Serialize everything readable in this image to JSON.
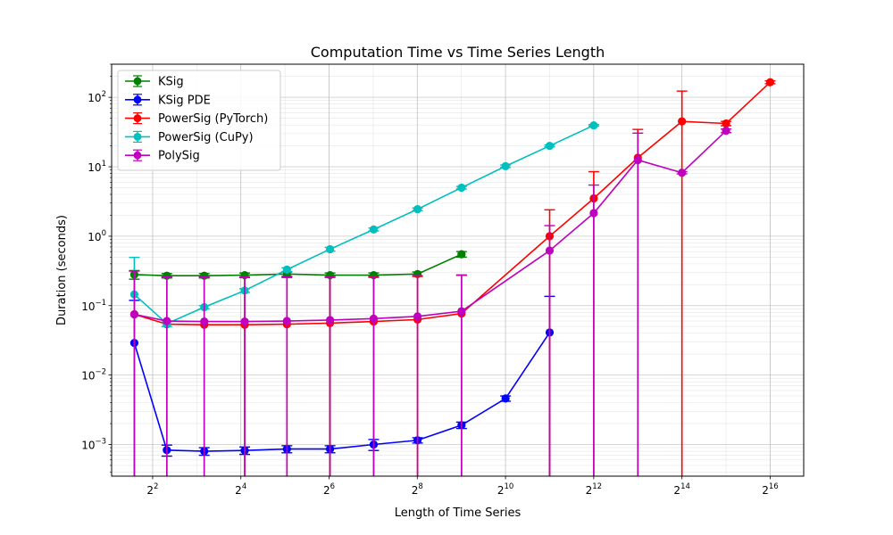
{
  "chart_data": {
    "type": "line",
    "title": "Computation Time vs Time Series Length",
    "xlabel": "Length of Time Series",
    "ylabel": "Duration (seconds)",
    "x_scale": "log2",
    "y_scale": "log10",
    "xlim": [
      2.1,
      111000
    ],
    "ylim": [
      0.00035,
      300
    ],
    "x_ticks": [
      {
        "value": 4,
        "base": "2",
        "exp": "2"
      },
      {
        "value": 16,
        "base": "2",
        "exp": "4"
      },
      {
        "value": 64,
        "base": "2",
        "exp": "6"
      },
      {
        "value": 256,
        "base": "2",
        "exp": "8"
      },
      {
        "value": 1024,
        "base": "2",
        "exp": "10"
      },
      {
        "value": 4096,
        "base": "2",
        "exp": "12"
      },
      {
        "value": 16384,
        "base": "2",
        "exp": "14"
      },
      {
        "value": 65536,
        "base": "2",
        "exp": "16"
      }
    ],
    "y_ticks": [
      {
        "value": 0.001,
        "base": "10",
        "exp": "−3"
      },
      {
        "value": 0.01,
        "base": "10",
        "exp": "−2"
      },
      {
        "value": 0.1,
        "base": "10",
        "exp": "−1"
      },
      {
        "value": 1,
        "base": "10",
        "exp": "0"
      },
      {
        "value": 10,
        "base": "10",
        "exp": "1"
      },
      {
        "value": 100,
        "base": "10",
        "exp": "2"
      }
    ],
    "grid": true,
    "legend_position": "top-left",
    "series": [
      {
        "name": "KSig",
        "color": "#008000",
        "points": [
          {
            "x": 3,
            "y": 0.28,
            "err": 0.04
          },
          {
            "x": 5,
            "y": 0.27,
            "err": 0.02
          },
          {
            "x": 9,
            "y": 0.27,
            "err": 0.02
          },
          {
            "x": 17,
            "y": 0.275,
            "err": 0.02
          },
          {
            "x": 33,
            "y": 0.285,
            "err": 0.02
          },
          {
            "x": 65,
            "y": 0.275,
            "err": 0.02
          },
          {
            "x": 129,
            "y": 0.275,
            "err": 0.02
          },
          {
            "x": 257,
            "y": 0.285,
            "err": 0.02
          },
          {
            "x": 513,
            "y": 0.55,
            "err": 0.05
          }
        ]
      },
      {
        "name": "KSig PDE",
        "color": "#0000ff",
        "points": [
          {
            "x": 3,
            "y": 0.029,
            "err": 0.09
          },
          {
            "x": 5,
            "y": 0.00083,
            "err": 0.00015
          },
          {
            "x": 9,
            "y": 0.0008,
            "err": 0.0001
          },
          {
            "x": 17,
            "y": 0.00082,
            "err": 0.0001
          },
          {
            "x": 33,
            "y": 0.00086,
            "err": 0.0001
          },
          {
            "x": 65,
            "y": 0.00086,
            "err": 0.0001
          },
          {
            "x": 129,
            "y": 0.001,
            "err": 0.00018
          },
          {
            "x": 257,
            "y": 0.00115,
            "err": 0.0001
          },
          {
            "x": 513,
            "y": 0.0019,
            "err": 0.0002
          },
          {
            "x": 1025,
            "y": 0.0046,
            "err": 0.0004
          },
          {
            "x": 2049,
            "y": 0.041,
            "err": 0.095
          }
        ]
      },
      {
        "name": "PowerSig (PyTorch)",
        "color": "#ff0000",
        "points": [
          {
            "x": 3,
            "y": 0.075,
            "err": 0.24
          },
          {
            "x": 5,
            "y": 0.054,
            "err": 0.2
          },
          {
            "x": 9,
            "y": 0.053,
            "err": 0.2
          },
          {
            "x": 17,
            "y": 0.053,
            "err": 0.2
          },
          {
            "x": 33,
            "y": 0.054,
            "err": 0.2
          },
          {
            "x": 65,
            "y": 0.056,
            "err": 0.2
          },
          {
            "x": 129,
            "y": 0.059,
            "err": 0.2
          },
          {
            "x": 257,
            "y": 0.063,
            "err": 0.2
          },
          {
            "x": 513,
            "y": 0.077,
            "err": 0.2
          },
          {
            "x": 2049,
            "y": 1.0,
            "err": 1.4
          },
          {
            "x": 4097,
            "y": 3.5,
            "err": 5.0
          },
          {
            "x": 8193,
            "y": 13.5,
            "err": 21.0
          },
          {
            "x": 16385,
            "y": 45,
            "err": 78
          },
          {
            "x": 32769,
            "y": 42,
            "err": 3
          },
          {
            "x": 65537,
            "y": 165,
            "err": 8
          }
        ]
      },
      {
        "name": "PowerSig (CuPy)",
        "color": "#00bfbf",
        "points": [
          {
            "x": 3,
            "y": 0.145,
            "err": 0.35
          },
          {
            "x": 5,
            "y": 0.055,
            "err": 0.005
          },
          {
            "x": 9,
            "y": 0.095,
            "err": 0.005
          },
          {
            "x": 17,
            "y": 0.165,
            "err": 0.01
          },
          {
            "x": 33,
            "y": 0.33,
            "err": 0.02
          },
          {
            "x": 65,
            "y": 0.65,
            "err": 0.04
          },
          {
            "x": 129,
            "y": 1.25,
            "err": 0.06
          },
          {
            "x": 257,
            "y": 2.45,
            "err": 0.1
          },
          {
            "x": 513,
            "y": 5.0,
            "err": 0.2
          },
          {
            "x": 1025,
            "y": 10.2,
            "err": 0.4
          },
          {
            "x": 2049,
            "y": 20.0,
            "err": 0.6
          },
          {
            "x": 4097,
            "y": 39.5,
            "err": 1.0
          }
        ]
      },
      {
        "name": "PolySig",
        "color": "#bf00bf",
        "points": [
          {
            "x": 3,
            "y": 0.075,
            "err": 0.24
          },
          {
            "x": 5,
            "y": 0.06,
            "err": 0.2
          },
          {
            "x": 9,
            "y": 0.059,
            "err": 0.2
          },
          {
            "x": 17,
            "y": 0.059,
            "err": 0.2
          },
          {
            "x": 33,
            "y": 0.06,
            "err": 0.2
          },
          {
            "x": 65,
            "y": 0.062,
            "err": 0.2
          },
          {
            "x": 129,
            "y": 0.065,
            "err": 0.2
          },
          {
            "x": 257,
            "y": 0.07,
            "err": 0.2
          },
          {
            "x": 513,
            "y": 0.083,
            "err": 0.19
          },
          {
            "x": 2049,
            "y": 0.62,
            "err": 0.8
          },
          {
            "x": 4097,
            "y": 2.15,
            "err": 3.3
          },
          {
            "x": 8193,
            "y": 12.5,
            "err": 18.0
          },
          {
            "x": 16385,
            "y": 8.2,
            "err": 0.3
          },
          {
            "x": 32769,
            "y": 33,
            "err": 2
          }
        ]
      }
    ]
  }
}
